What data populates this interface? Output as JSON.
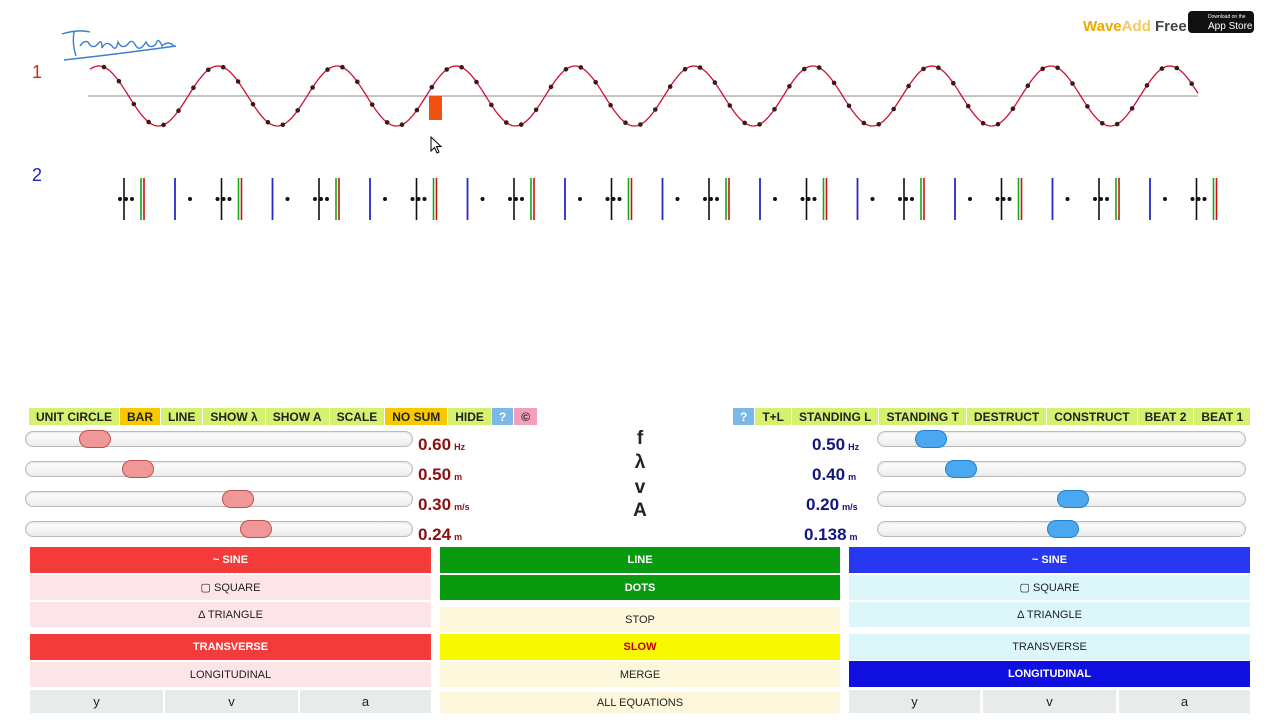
{
  "channels": {
    "one": "1",
    "two": "2"
  },
  "brand": {
    "wave": "Wave",
    "add": "Add",
    "free": "Free"
  },
  "appstore": {
    "small": "Download on the",
    "big": "App Store"
  },
  "toolbar_left": [
    "UNIT CIRCLE",
    "BAR",
    "LINE",
    "SHOW λ",
    "SHOW A",
    "SCALE",
    "NO SUM",
    "HIDE",
    "?",
    "©"
  ],
  "toolbar_right": [
    "?",
    "T+L",
    "STANDING L",
    "STANDING T",
    "DESTRUCT",
    "CONSTRUCT",
    "BEAT 2",
    "BEAT 1"
  ],
  "symbols": [
    "f",
    "λ",
    "v",
    "A"
  ],
  "wave1": {
    "values": [
      {
        "num": "0.60",
        "unit": "Hz",
        "fraction": 0.15
      },
      {
        "num": "0.50",
        "unit": "m",
        "fraction": 0.27
      },
      {
        "num": "0.30",
        "unit": "m/s",
        "fraction": 0.55
      },
      {
        "num": "0.24",
        "unit": "m",
        "fraction": 0.6
      }
    ],
    "shape": {
      "sine": "~ SINE",
      "square": "▢ SQUARE",
      "triangle": "Δ TRIANGLE"
    },
    "mode": {
      "transverse": "TRANSVERSE",
      "longitudinal": "LONGITUDINAL"
    },
    "graph": {
      "y": "y",
      "v": "v",
      "a": "a"
    }
  },
  "wave2": {
    "values": [
      {
        "num": "0.50",
        "unit": "Hz",
        "fraction": 0.11
      },
      {
        "num": "0.40",
        "unit": "m",
        "fraction": 0.2
      },
      {
        "num": "0.20",
        "unit": "m/s",
        "fraction": 0.53
      },
      {
        "num": "0.138",
        "unit": "m",
        "fraction": 0.5
      }
    ],
    "shape": {
      "sine": "~ SINE",
      "square": "▢ SQUARE",
      "triangle": "Δ TRIANGLE"
    },
    "mode": {
      "transverse": "TRANSVERSE",
      "longitudinal": "LONGITUDINAL"
    },
    "graph": {
      "y": "y",
      "v": "v",
      "a": "a"
    }
  },
  "center": {
    "line": "LINE",
    "dots": "DOTS",
    "stop": "STOP",
    "slow": "SLOW",
    "merge": "MERGE",
    "all_equations": "ALL EQUATIONS"
  },
  "colors": {
    "wave_red": "#d01030",
    "wave_blue": "#2828c8",
    "accent_green": "#d6f070"
  }
}
